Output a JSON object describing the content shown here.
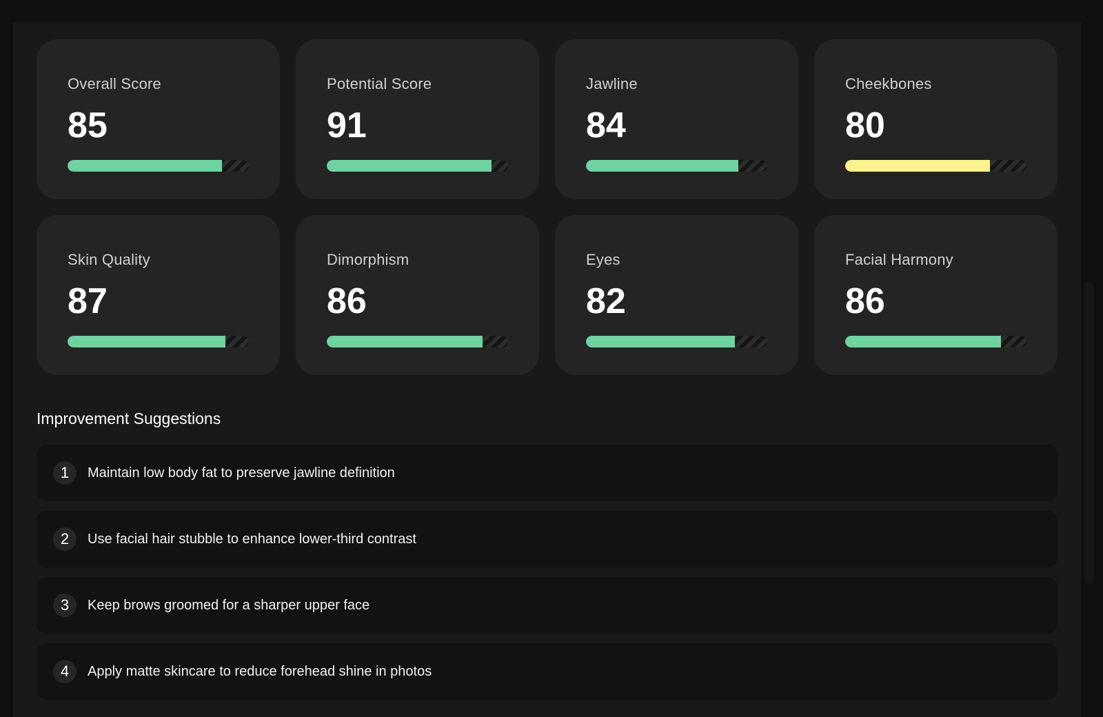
{
  "metrics": [
    {
      "label": "Overall Score",
      "value": "85",
      "fill": 0.85,
      "color": "#6fd39f"
    },
    {
      "label": "Potential Score",
      "value": "91",
      "fill": 0.91,
      "color": "#6fd39f"
    },
    {
      "label": "Jawline",
      "value": "84",
      "fill": 0.84,
      "color": "#6fd39f"
    },
    {
      "label": "Cheekbones",
      "value": "80",
      "fill": 0.8,
      "color": "#fbf38e"
    },
    {
      "label": "Skin Quality",
      "value": "87",
      "fill": 0.87,
      "color": "#6fd39f"
    },
    {
      "label": "Dimorphism",
      "value": "86",
      "fill": 0.86,
      "color": "#6fd39f"
    },
    {
      "label": "Eyes",
      "value": "82",
      "fill": 0.82,
      "color": "#6fd39f"
    },
    {
      "label": "Facial Harmony",
      "value": "86",
      "fill": 0.86,
      "color": "#6fd39f"
    }
  ],
  "improvements": {
    "title": "Improvement Suggestions",
    "items": [
      {
        "number": "1",
        "text": "Maintain low body fat to preserve jawline definition"
      },
      {
        "number": "2",
        "text": "Use facial hair stubble to enhance lower-third contrast"
      },
      {
        "number": "3",
        "text": "Keep brows groomed for a sharper upper face"
      },
      {
        "number": "4",
        "text": "Apply matte skincare to reduce forehead shine in photos"
      }
    ]
  }
}
